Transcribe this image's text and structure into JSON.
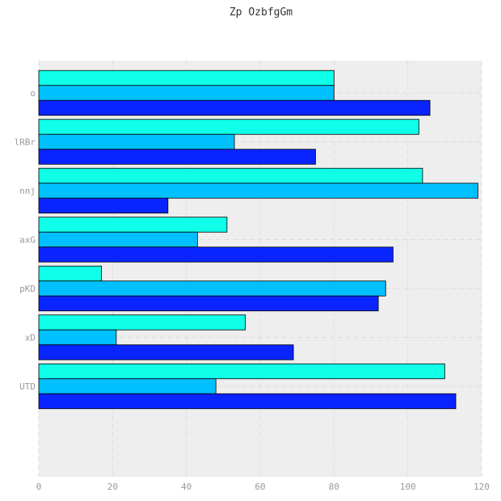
{
  "chart_data": {
    "type": "bar",
    "orientation": "horizontal",
    "title": "Zp OzbfgGm",
    "xlabel": "",
    "ylabel": "",
    "xlim": [
      0,
      120
    ],
    "x_ticks": [
      0,
      20,
      40,
      60,
      80,
      100,
      120
    ],
    "grid": true,
    "categories": [
      "o",
      "lRBr",
      "nnj",
      "axG",
      "pKD",
      "xD",
      "UTD"
    ],
    "series": [
      {
        "color": "#10ffe8",
        "values": [
          80,
          103,
          104,
          51,
          17,
          56,
          110
        ]
      },
      {
        "color": "#00c0ff",
        "values": [
          80,
          53,
          119,
          43,
          94,
          21,
          48
        ]
      },
      {
        "color": "#0a24ff",
        "values": [
          106,
          75,
          35,
          96,
          92,
          69,
          113
        ]
      }
    ]
  },
  "colors": {
    "plot_background": "#eeeeee",
    "grid": "#dddddd",
    "bar_edge": "#000000",
    "tick_label": "#999999"
  }
}
